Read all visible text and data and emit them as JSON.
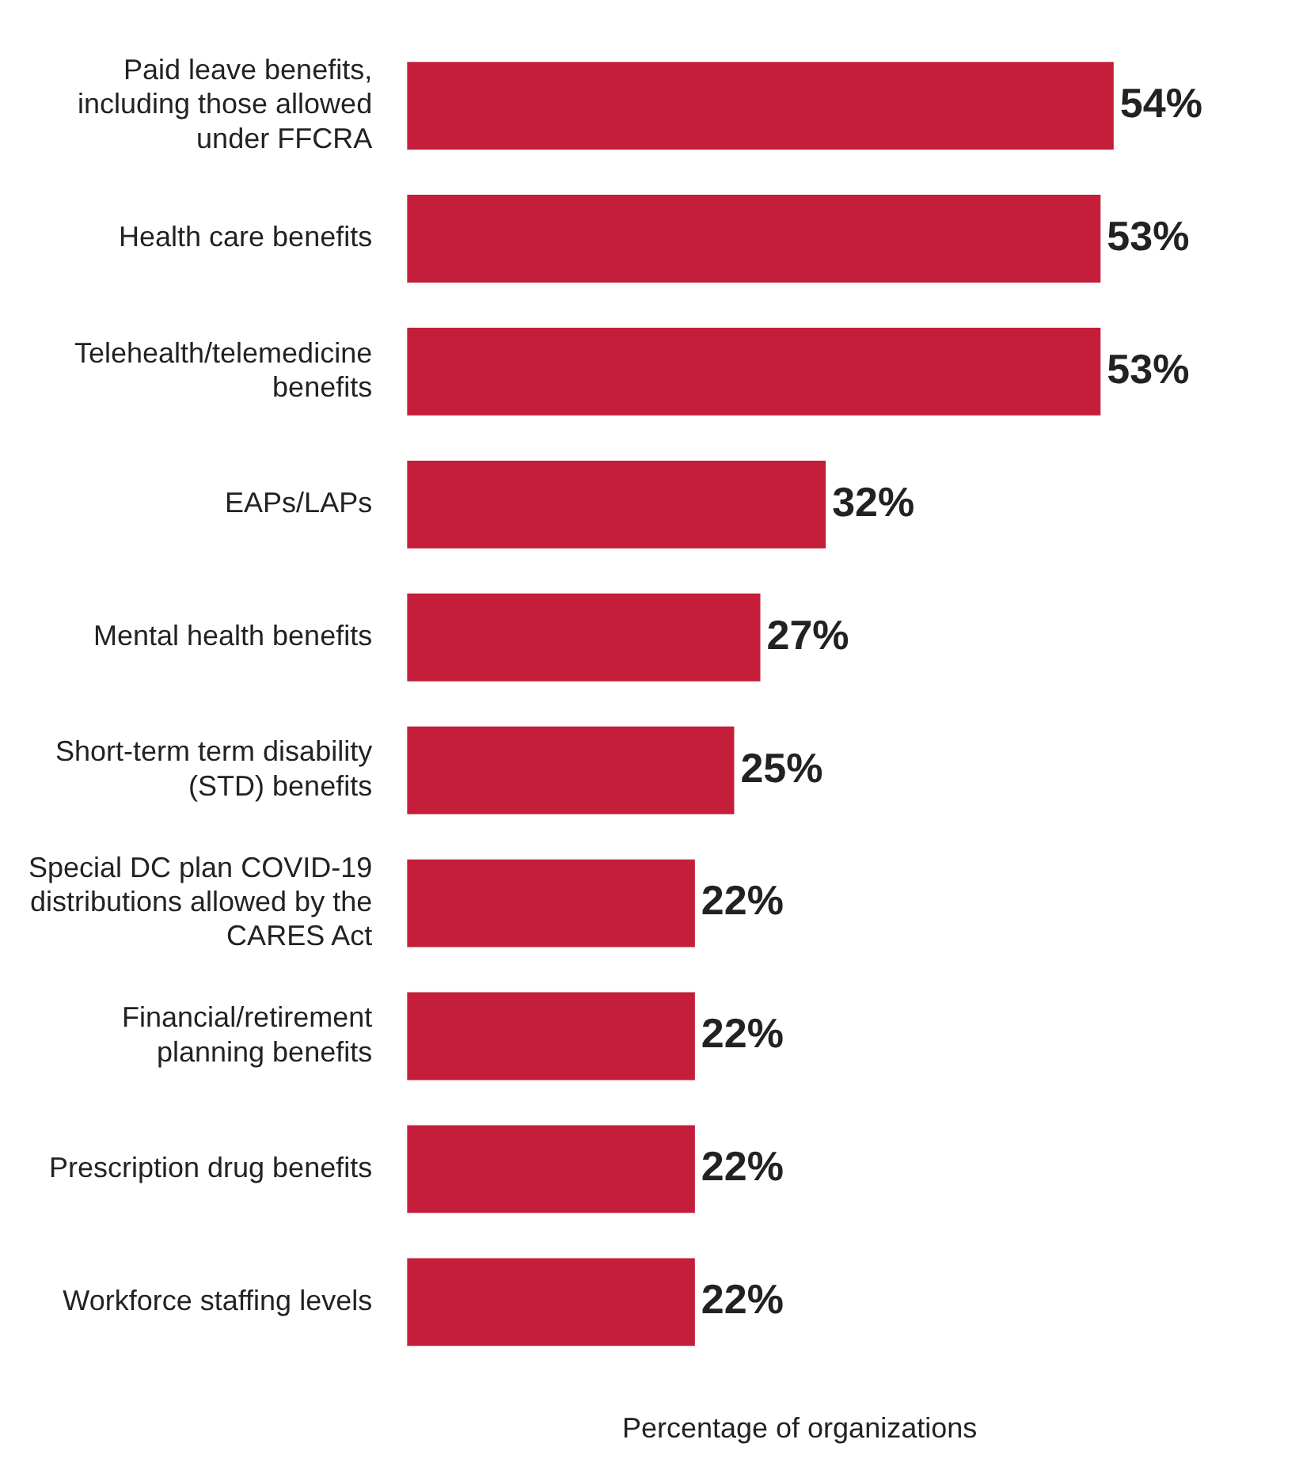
{
  "chart_data": {
    "type": "bar",
    "orientation": "horizontal",
    "xlabel": "Percentage of organizations",
    "categories": [
      "Paid leave benefits, including those allowed under FFCRA",
      "Health care benefits",
      "Telehealth/telemedicine benefits",
      "EAPs/LAPs",
      "Mental health benefits",
      "Short-term term disability (STD) benefits",
      "Special DC plan COVID-19 distributions allowed by the CARES Act",
      "Financial/retirement planning benefits",
      "Prescription drug benefits",
      "Workforce staffing levels"
    ],
    "values": [
      54,
      53,
      53,
      32,
      27,
      25,
      22,
      22,
      22,
      22
    ],
    "value_labels": [
      "54%",
      "53%",
      "53%",
      "32%",
      "27%",
      "25%",
      "22%",
      "22%",
      "22%",
      "22%"
    ],
    "color": "#c41e3a",
    "grid": false,
    "legend": false
  }
}
